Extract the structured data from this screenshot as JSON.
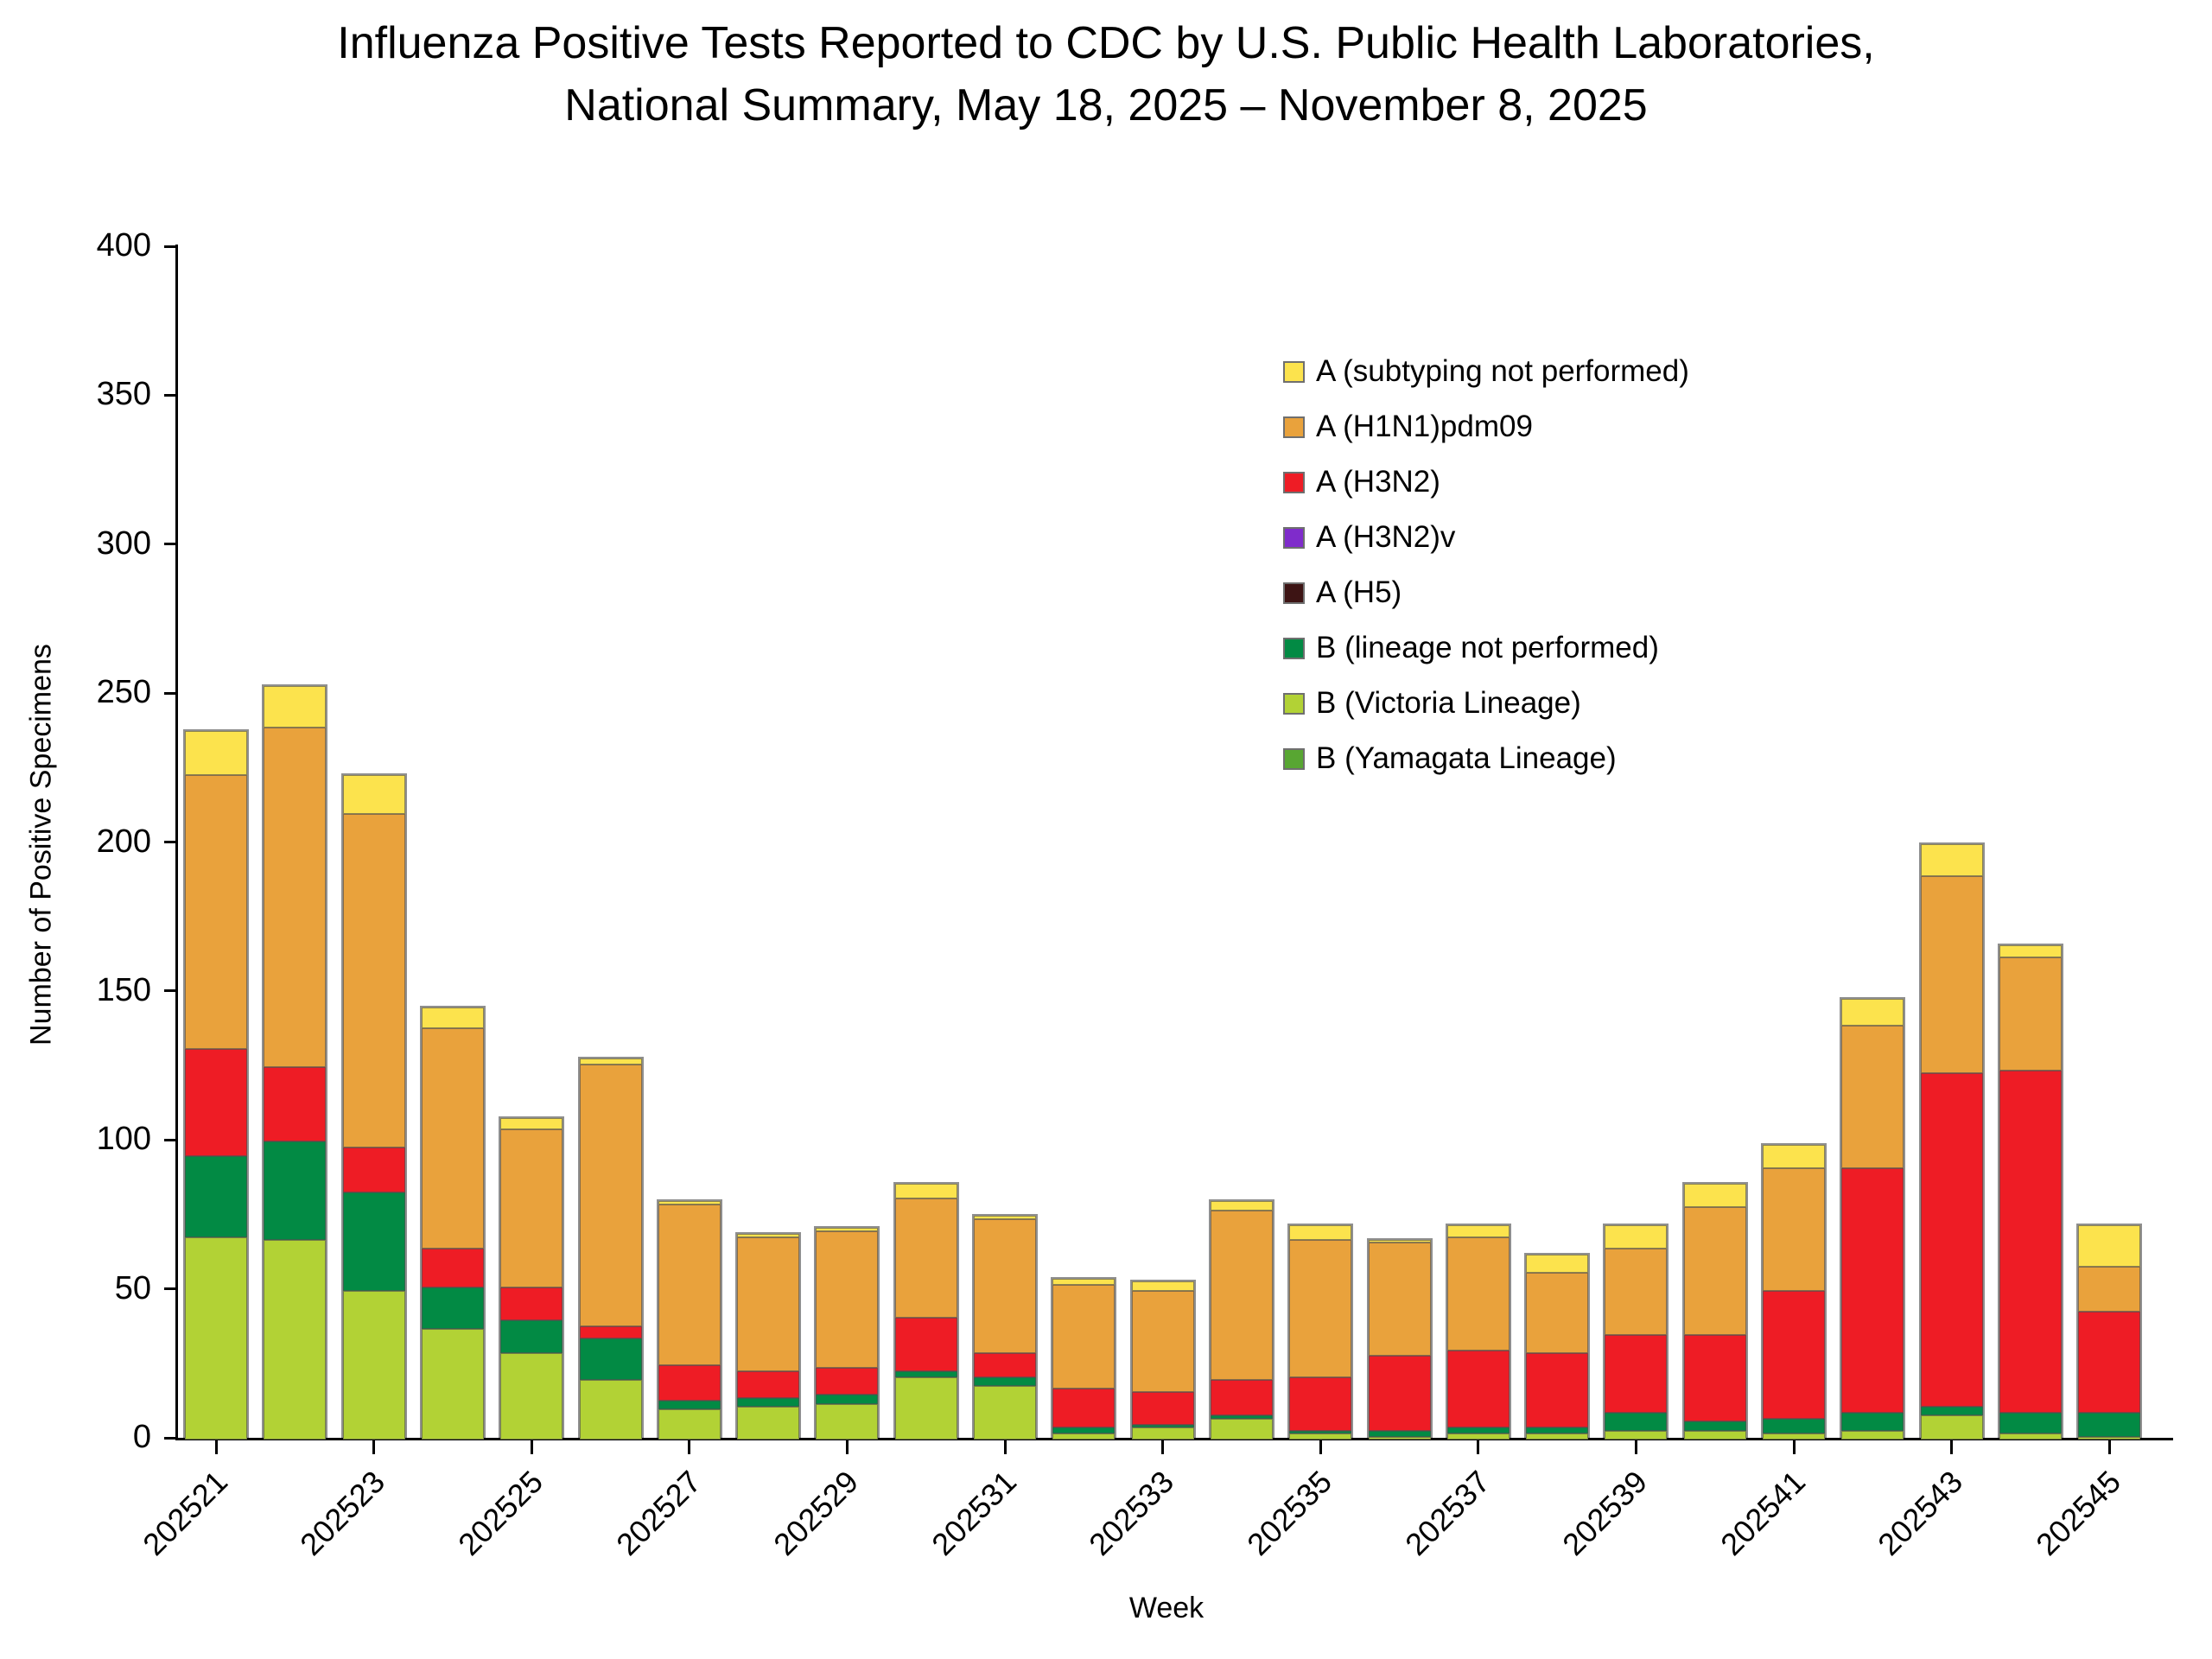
{
  "title": {
    "line1": "Influenza Positive Tests Reported to CDC by U.S. Public Health Laboratories,",
    "line2": "National Summary, May 18, 2025 – November 8, 2025"
  },
  "axes": {
    "ylabel": "Number of Positive Specimens",
    "xlabel": "Week",
    "y_ticks": [
      0,
      50,
      100,
      150,
      200,
      250,
      300,
      350,
      400
    ],
    "x_tick_labels": [
      "202521",
      "202523",
      "202525",
      "202527",
      "202529",
      "202531",
      "202533",
      "202535",
      "202537",
      "202539",
      "202541",
      "202543",
      "202545"
    ]
  },
  "legend": [
    {
      "label": "A (subtyping not performed)",
      "color": "#FCE34D"
    },
    {
      "label": "A (H1N1)pdm09",
      "color": "#E9A23C"
    },
    {
      "label": "A (H3N2)",
      "color": "#EE1C25"
    },
    {
      "label": "A (H3N2)v",
      "color": "#7F2CCB"
    },
    {
      "label": "A (H5)",
      "color": "#3D1414"
    },
    {
      "label": "B (lineage not performed)",
      "color": "#028A44"
    },
    {
      "label": "B (Victoria Lineage)",
      "color": "#B2D235"
    },
    {
      "label": "B (Yamagata Lineage)",
      "color": "#58A632"
    }
  ],
  "chart_data": {
    "type": "bar",
    "subtype": "stacked-vertical",
    "title": "Influenza Positive Tests Reported to CDC by U.S. Public Health Laboratories, National Summary, May 18, 2025 – November 8, 2025",
    "xlabel": "Week",
    "ylabel": "Number of Positive Specimens",
    "ylim": [
      0,
      400
    ],
    "ytick_step": 50,
    "grid": false,
    "legend_position": "upper-right-inside",
    "categories": [
      202521,
      202522,
      202523,
      202524,
      202525,
      202526,
      202527,
      202528,
      202529,
      202530,
      202531,
      202532,
      202533,
      202534,
      202535,
      202536,
      202537,
      202538,
      202539,
      202540,
      202541,
      202542,
      202543,
      202544,
      202545
    ],
    "stack_order_note": "series listed bottom of stack first",
    "series": [
      {
        "name": "B (Victoria Lineage)",
        "color": "#B2D235",
        "values": [
          68,
          67,
          50,
          37,
          29,
          20,
          10,
          11,
          12,
          21,
          18,
          2,
          4,
          7,
          2,
          1,
          2,
          2,
          3,
          3,
          2,
          3,
          8,
          2,
          1
        ]
      },
      {
        "name": "B (Yamagata Lineage)",
        "color": "#58A632",
        "values": [
          0,
          0,
          0,
          0,
          0,
          0,
          0,
          0,
          0,
          0,
          0,
          0,
          0,
          0,
          0,
          0,
          0,
          0,
          0,
          0,
          0,
          0,
          0,
          0,
          0
        ]
      },
      {
        "name": "B (lineage not performed)",
        "color": "#028A44",
        "values": [
          27,
          33,
          33,
          14,
          11,
          14,
          3,
          3,
          3,
          2,
          3,
          2,
          1,
          1,
          1,
          2,
          2,
          2,
          6,
          3,
          5,
          6,
          3,
          7,
          8
        ]
      },
      {
        "name": "A (H5)",
        "color": "#3D1414",
        "values": [
          0,
          0,
          0,
          0,
          0,
          0,
          0,
          0,
          0,
          0,
          0,
          0,
          0,
          0,
          0,
          0,
          0,
          0,
          0,
          0,
          0,
          0,
          0,
          0,
          0
        ]
      },
      {
        "name": "A (H3N2)v",
        "color": "#7F2CCB",
        "values": [
          0,
          0,
          0,
          0,
          0,
          0,
          0,
          0,
          0,
          0,
          0,
          0,
          0,
          0,
          0,
          0,
          0,
          0,
          0,
          0,
          0,
          0,
          0,
          0,
          0
        ]
      },
      {
        "name": "A (H3N2)",
        "color": "#EE1C25",
        "values": [
          36,
          25,
          15,
          13,
          11,
          4,
          12,
          9,
          9,
          18,
          8,
          13,
          11,
          12,
          18,
          25,
          26,
          25,
          26,
          29,
          43,
          82,
          112,
          115,
          34
        ]
      },
      {
        "name": "A (H1N1)pdm09",
        "color": "#E9A23C",
        "values": [
          92,
          114,
          112,
          74,
          53,
          88,
          54,
          45,
          46,
          40,
          45,
          35,
          34,
          57,
          46,
          38,
          38,
          27,
          29,
          43,
          41,
          48,
          66,
          38,
          15
        ]
      },
      {
        "name": "A (subtyping not performed)",
        "color": "#FCE34D",
        "values": [
          15,
          14,
          13,
          7,
          4,
          2,
          1,
          1,
          1,
          5,
          1,
          2,
          3,
          3,
          5,
          1,
          4,
          6,
          8,
          8,
          8,
          9,
          11,
          4,
          14
        ]
      }
    ],
    "totals": [
      238,
      253,
      223,
      145,
      108,
      128,
      80,
      69,
      71,
      86,
      75,
      54,
      53,
      80,
      72,
      67,
      72,
      62,
      72,
      86,
      99,
      148,
      200,
      166,
      72
    ]
  }
}
